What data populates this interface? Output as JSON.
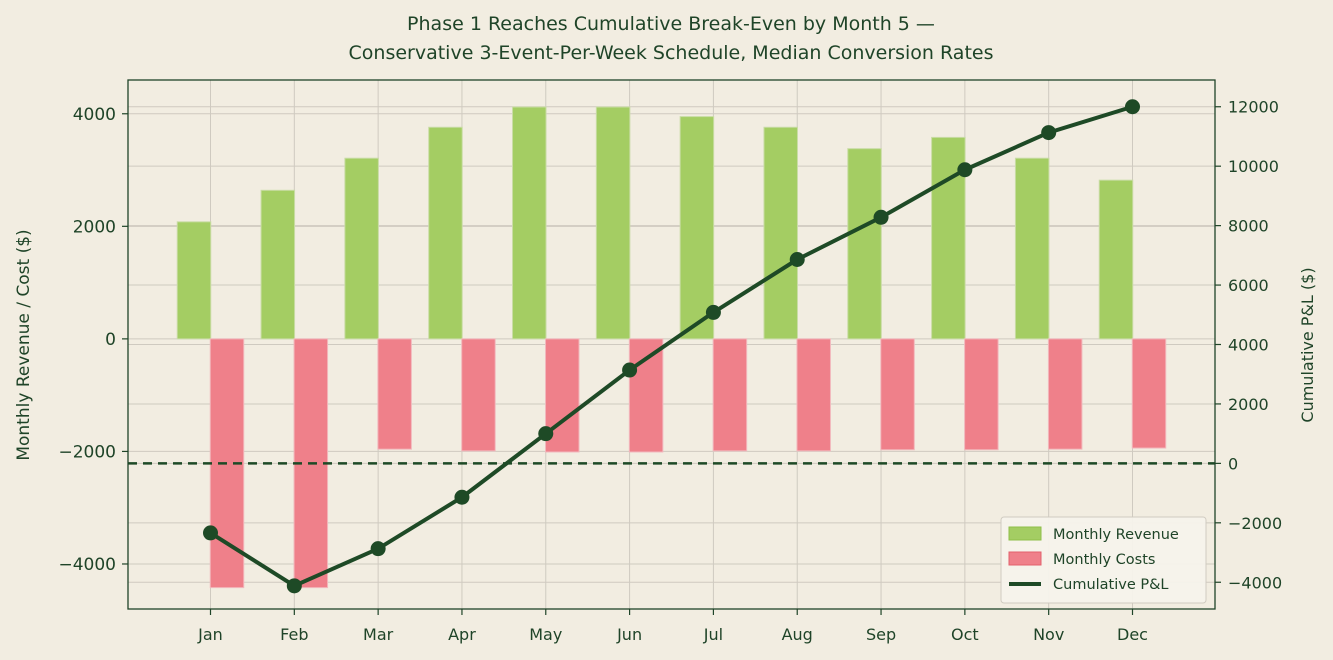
{
  "chart_data": {
    "type": "bar",
    "title": "Phase 1 Reaches Cumulative Break-Even by Month 5 —\nConservative 3-Event-Per-Week Schedule, Median Conversion Rates",
    "categories": [
      "Jan",
      "Feb",
      "Mar",
      "Apr",
      "May",
      "Jun",
      "Jul",
      "Aug",
      "Sep",
      "Oct",
      "Nov",
      "Dec"
    ],
    "ylabel": "Monthly Revenue / Cost ($)",
    "y2label": "Cumulative P&L ($)",
    "ylim": [
      -4800,
      4600
    ],
    "y2lim": [
      -4900,
      12900
    ],
    "yticks": [
      -4000,
      -2000,
      0,
      2000,
      4000
    ],
    "y2ticks": [
      -4000,
      -2000,
      0,
      2000,
      4000,
      6000,
      8000,
      10000,
      12000
    ],
    "grid": true,
    "legend_position": "bottom-right",
    "series": [
      {
        "name": "Monthly Revenue",
        "kind": "bar",
        "axis": "left",
        "color": "#a4cd63",
        "values": [
          2080,
          2640,
          3210,
          3760,
          4120,
          4120,
          3950,
          3760,
          3380,
          3580,
          3210,
          2820
        ]
      },
      {
        "name": "Monthly Costs",
        "kind": "bar",
        "axis": "left",
        "color": "#ef808a",
        "values": [
          -4420,
          -4420,
          -1960,
          -1990,
          -2010,
          -2010,
          -1990,
          -1990,
          -1970,
          -1970,
          -1960,
          -1940
        ]
      },
      {
        "name": "Cumulative P&L",
        "kind": "line",
        "axis": "right",
        "color": "#1e4a26",
        "values": [
          -2340,
          -4120,
          -2870,
          -1140,
          1000,
          3140,
          5080,
          6860,
          8280,
          9880,
          11130,
          12000
        ]
      }
    ],
    "reference_lines": [
      {
        "axis": "right",
        "value": 0,
        "style": "dashed",
        "color": "#1e4a26"
      }
    ]
  }
}
